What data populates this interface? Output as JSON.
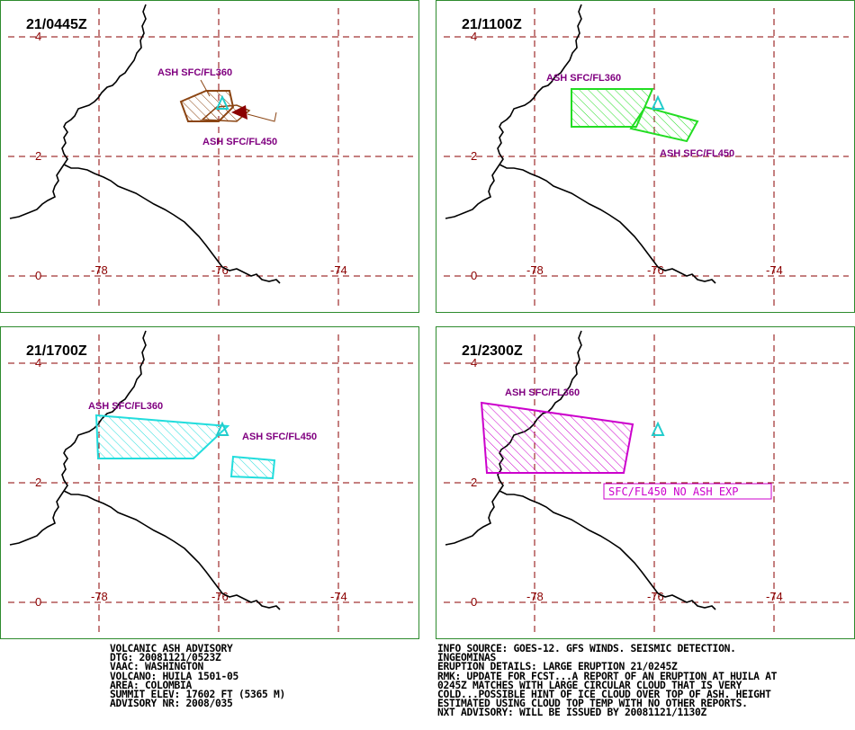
{
  "panels": [
    {
      "id": "p1",
      "time": "21/0445Z",
      "labels": [
        {
          "text": "ASH SFC/FL360",
          "color": "#800080"
        },
        {
          "text": "ASH SFC/FL450",
          "color": "#800080"
        }
      ]
    },
    {
      "id": "p2",
      "time": "21/1100Z",
      "labels": [
        {
          "text": "ASH SFC/FL360",
          "color": "#800080"
        },
        {
          "text": "ASH SFC/FL450",
          "color": "#800080"
        }
      ]
    },
    {
      "id": "p3",
      "time": "21/1700Z",
      "labels": [
        {
          "text": "ASH SFC/FL360",
          "color": "#800080"
        },
        {
          "text": "ASH SFC/FL450",
          "color": "#800080"
        }
      ]
    },
    {
      "id": "p4",
      "time": "21/2300Z",
      "labels": [
        {
          "text": "ASH SFC/FL360",
          "color": "#800080"
        },
        {
          "text": "SFC/FL450 NO ASH EXP",
          "color": "#cc00cc"
        }
      ]
    }
  ],
  "axes": {
    "lat_labels": [
      "4",
      "2",
      "0"
    ],
    "lon_labels": [
      "-78",
      "-76",
      "-74"
    ]
  },
  "advisory_left": [
    "VOLCANIC ASH ADVISORY",
    "DTG: 20081121/0523Z",
    "VAAC: WASHINGTON",
    "VOLCANO: HUILA 1501-05",
    "AREA: COLOMBIA",
    "SUMMIT ELEV: 17602 FT (5365 M)",
    "ADVISORY NR: 2008/035"
  ],
  "advisory_right": [
    "INFO SOURCE: GOES-12. GFS WINDS. SEISMIC DETECTION.",
    "INGEOMINAS",
    "ERUPTION DETAILS: LARGE ERUPTION 21/0245Z",
    "RMK: UPDATE FOR FCST...A REPORT OF AN ERUPTION AT HUILA AT",
    "0245Z MATCHES WITH LARGE CIRCULAR CLOUD THAT IS VERY",
    "COLD...POSSIBLE HINT OF ICE CLOUD OVER TOP OF ASH. HEIGHT",
    "ESTIMATED USING CLOUD TOP TEMP WITH NO OTHER REPORTS.",
    "NXT ADVISORY: WILL BE ISSUED BY 20081121/1130Z"
  ],
  "colors": {
    "frame": "#2e8b2e",
    "grid": "#8b0000",
    "coast": "#000000",
    "p1_ash": "#8b4513",
    "p2_ash": "#22dd22",
    "p3_ash": "#22dddd",
    "p4_ash": "#cc00cc",
    "volcano": "#22cccc"
  }
}
